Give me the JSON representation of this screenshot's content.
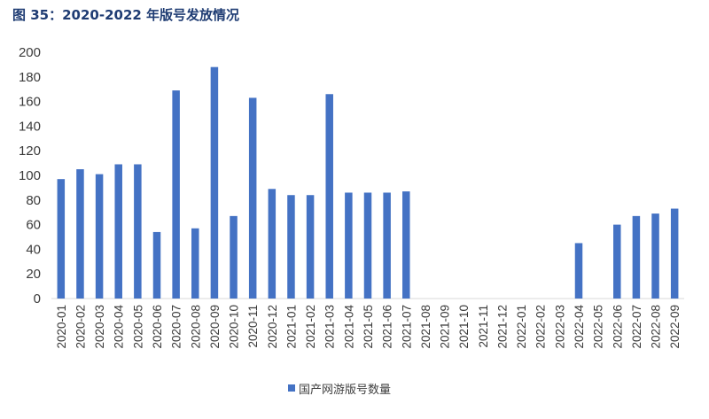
{
  "figure": {
    "title": "图 35：2020-2022 年版号发放情况"
  },
  "chart_data": {
    "type": "bar",
    "title": "图 35：2020-2022 年版号发放情况",
    "xlabel": "",
    "ylabel": "",
    "categories": [
      "2020-01",
      "2020-02",
      "2020-03",
      "2020-04",
      "2020-05",
      "2020-06",
      "2020-07",
      "2020-08",
      "2020-09",
      "2020-10",
      "2020-11",
      "2020-12",
      "2021-01",
      "2021-02",
      "2021-03",
      "2021-04",
      "2021-05",
      "2021-06",
      "2021-07",
      "2021-08",
      "2021-09",
      "2021-10",
      "2021-11",
      "2021-12",
      "2022-01",
      "2022-02",
      "2022-03",
      "2022-04",
      "2022-05",
      "2022-06",
      "2022-07",
      "2022-08",
      "2022-09"
    ],
    "series": [
      {
        "name": "国产网游版号数量",
        "values": [
          97,
          105,
          101,
          109,
          109,
          54,
          169,
          57,
          188,
          67,
          163,
          89,
          84,
          84,
          166,
          86,
          86,
          86,
          87,
          0,
          0,
          0,
          0,
          0,
          0,
          0,
          0,
          45,
          0,
          60,
          67,
          69,
          73
        ]
      }
    ],
    "ylim": [
      0,
      200
    ],
    "yticks": [
      "0",
      "20",
      "40",
      "60",
      "80",
      "100",
      "120",
      "140",
      "160",
      "180",
      "200"
    ],
    "grid": false,
    "legend": "bottom-center",
    "colors": {
      "bar": "#4472C4",
      "title": "#1F3C73"
    }
  }
}
